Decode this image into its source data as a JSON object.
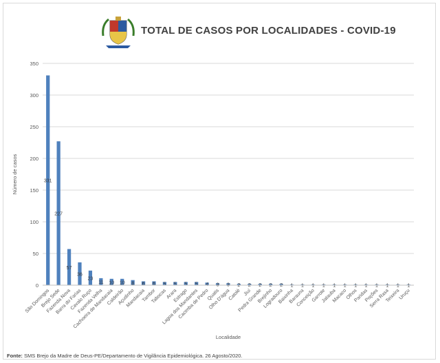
{
  "header": {
    "title": "TOTAL DE CASOS POR LOCALIDADES - COVID-19"
  },
  "footer": {
    "source_label": "Fonte:",
    "source_text": " SMS Brejo da Madre de Deus-PE/Departamento de Vigilância Epidemiológica. 26 Agosto/2020."
  },
  "colors": {
    "bar": "#4f81bd",
    "grid": "#d9d9d9",
    "text": "#595959"
  },
  "chart_data": {
    "type": "bar",
    "title": "TOTAL DE CASOS POR LOCALIDADES - COVID-19",
    "xlabel": "Localidade",
    "ylabel": "Número de casos",
    "ylim": [
      0,
      350
    ],
    "yticks": [
      0,
      50,
      100,
      150,
      200,
      250,
      300,
      350
    ],
    "grid": true,
    "legend": "none",
    "categories": [
      "São Domingos",
      "Brejo Sede",
      "Fazenda Nova",
      "Barra do Farias",
      "Cavalo Ruço",
      "Fazenda Velha",
      "Cachoeira de Mandacaia",
      "Caldeirão",
      "Açudinho",
      "Mandacaia",
      "Tambor",
      "Tabocas",
      "Arara",
      "Estrago",
      "Lagoa dos Mandantes",
      "Cacimba de Pedro",
      "Quatis",
      "Olho D'água",
      "Catolé",
      "Jiuí",
      "Pedra Grande",
      "Brejinho",
      "Logradouro",
      "Baixinha",
      "Barauna",
      "Conceição",
      "Garrote",
      "Jatauba",
      "Macaco",
      "Olhos",
      "Paridas",
      "Poções",
      "Serra Rasa",
      "Teixeira",
      "Uruçu"
    ],
    "values": [
      331,
      227,
      57,
      36,
      23,
      11,
      10,
      10,
      8,
      6,
      6,
      5,
      5,
      5,
      5,
      4,
      3,
      3,
      2,
      2,
      2,
      2,
      2,
      1,
      1,
      1,
      1,
      1,
      1,
      1,
      1,
      1,
      1,
      1,
      1
    ]
  }
}
